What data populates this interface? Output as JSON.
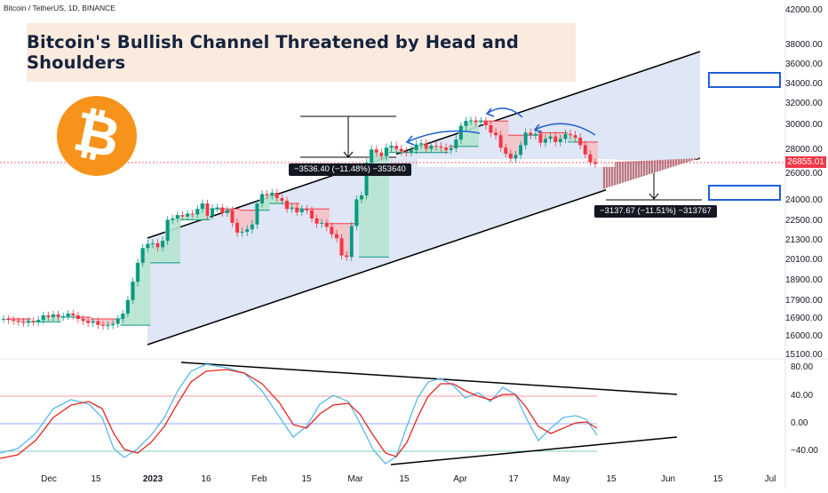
{
  "chart_data": {
    "type": "candlestick",
    "title": "Bitcoin's Bullish Channel Threatened by Head and Shoulders",
    "symbol": "Bitcoin / TetherUS, 1D, BINANCE",
    "last_price": "26855.01",
    "y_ticks": [
      "42000.00",
      "38000.00",
      "36000.00",
      "34000.00",
      "32000.00",
      "30000.00",
      "28000.00",
      "26000.00",
      "24000.00",
      "22500.00",
      "21300.00",
      "20100.00",
      "18900.00",
      "17900.00",
      "16900.00",
      "16000.00",
      "15100.00"
    ],
    "x_ticks": [
      "Dec",
      "15",
      "2023",
      "16",
      "Feb",
      "15",
      "Mar",
      "15",
      "Apr",
      "17",
      "May",
      "15",
      "Jun",
      "15",
      "Jul"
    ],
    "x_bold": [
      false,
      false,
      true,
      false,
      false,
      false,
      false,
      false,
      false,
      false,
      false,
      false,
      false,
      false,
      false
    ],
    "closes": [
      16900,
      16850,
      16800,
      16750,
      16700,
      16800,
      16750,
      16850,
      17100,
      17000,
      17150,
      17000,
      17050,
      17200,
      17100,
      16900,
      16800,
      16700,
      16780,
      16600,
      16550,
      16580,
      16650,
      16900,
      17200,
      17950,
      18850,
      19950,
      20850,
      21100,
      21150,
      20900,
      21300,
      22600,
      22700,
      22950,
      22850,
      23050,
      23000,
      23400,
      23800,
      22900,
      23450,
      23500,
      23100,
      23300,
      22400,
      21800,
      21850,
      22000,
      22300,
      23800,
      24500,
      24400,
      24600,
      24200,
      24000,
      23400,
      23500,
      23150,
      23400,
      23300,
      22700,
      22350,
      22400,
      22150,
      21700,
      21450,
      20400,
      20300,
      22200,
      24100,
      24400,
      26950,
      28050,
      27800,
      27500,
      28200,
      28350,
      28100,
      27900,
      27800,
      28000,
      28450,
      28550,
      28100,
      28350,
      28300,
      28200,
      28000,
      28150,
      28850,
      29950,
      30400,
      30450,
      30300,
      30400,
      30000,
      29400,
      29200,
      28200,
      27700,
      27300,
      27600,
      28400,
      29400,
      29200,
      29300,
      28600,
      28900,
      29100,
      28650,
      28900,
      29300,
      29200,
      29000,
      28400,
      27650,
      27000,
      26855
    ]
  },
  "annotations": {
    "measure_top": "−3536.40 (−11.48%) −353640",
    "measure_bottom": "−3137.67 (−11.51%) −313767"
  },
  "oscillator": {
    "y_ticks": [
      "80.00",
      "40.00",
      "0.00",
      "−40.00"
    ]
  },
  "colors": {
    "title_bg": "#fbeade",
    "channel_fill": "#dfe6f5",
    "bull": "#089981",
    "bear": "#f23645",
    "btc_orange": "#f7931a",
    "target_box": "#1e5fd6"
  },
  "icons": {
    "logo": "bitcoin-icon"
  }
}
